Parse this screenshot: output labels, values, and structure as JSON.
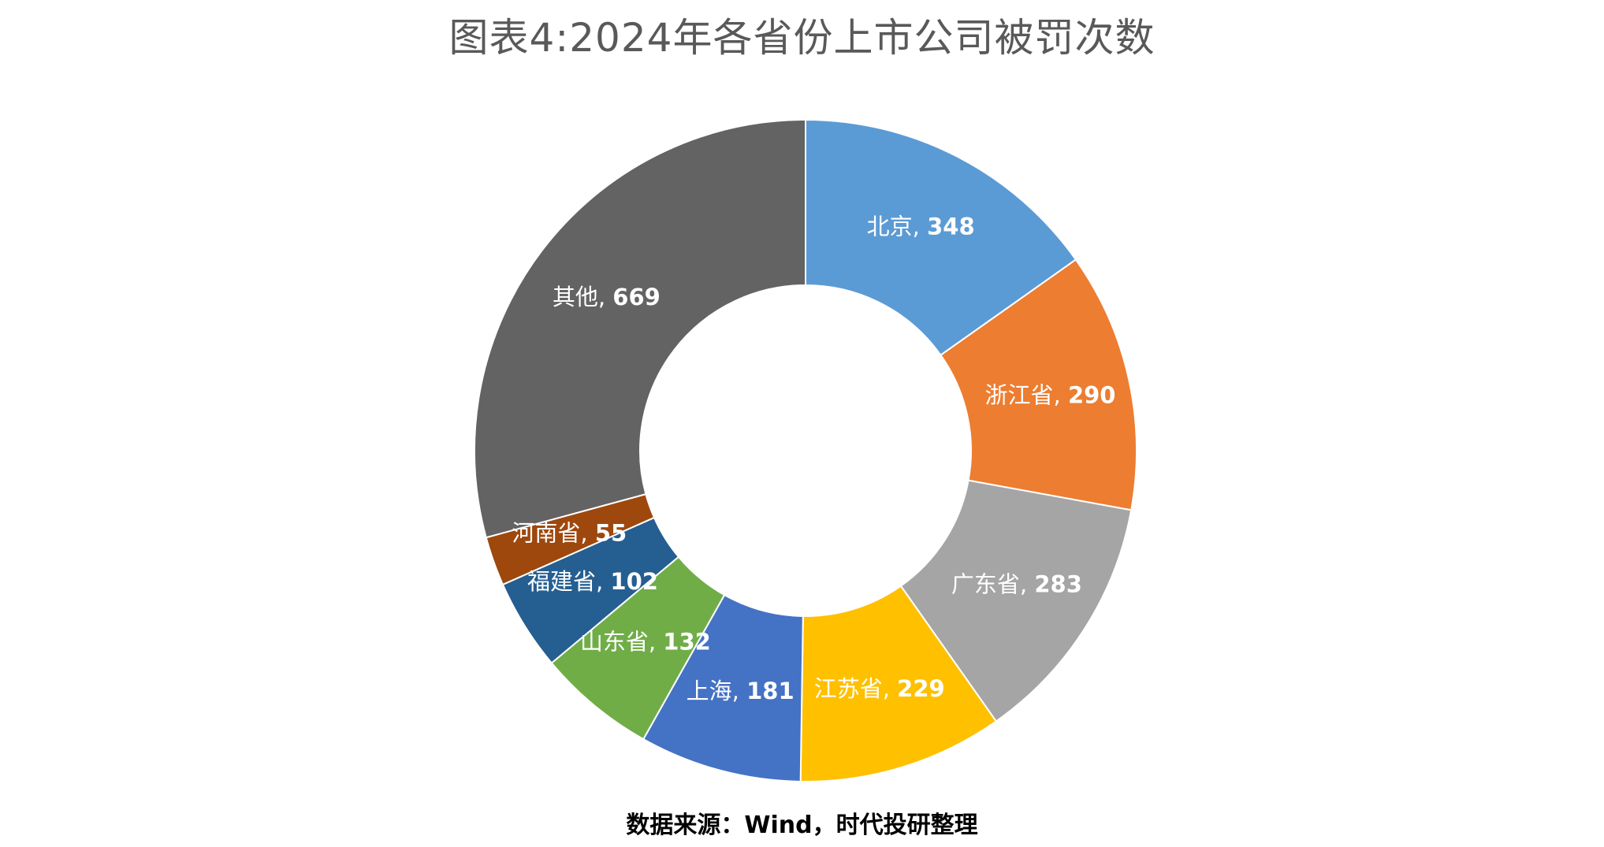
{
  "chart_data": {
    "type": "pie",
    "title": "图表4:2024年各省份上市公司被罚次数",
    "categories": [
      "北京",
      "浙江省",
      "广东省",
      "江苏省",
      "上海",
      "山东省",
      "福建省",
      "河南省",
      "其他"
    ],
    "values": [
      348,
      290,
      283,
      229,
      181,
      132,
      102,
      55,
      669
    ],
    "colors": [
      "#5B9BD5",
      "#ED7D31",
      "#A5A5A5",
      "#FFC000",
      "#4472C4",
      "#70AD47",
      "#255E91",
      "#9E480E",
      "#636363"
    ],
    "label_format": "{category}, {value}",
    "legend": "none"
  },
  "footer": {
    "source": "数据来源：Wind，时代投研整理"
  }
}
